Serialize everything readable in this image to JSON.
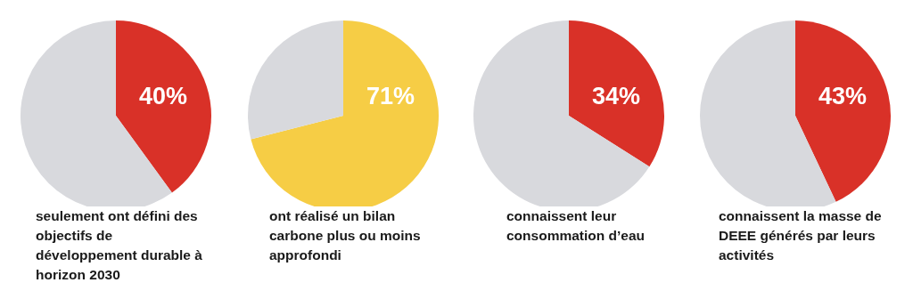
{
  "chart_data": [
    {
      "type": "pie",
      "title": "seulement ont défini des objectifs de développement durable à horizon 2030",
      "categories": [
        null,
        null
      ],
      "values": [
        40,
        60
      ],
      "colors": [
        "#d93128",
        "#d8d9dd"
      ],
      "value_labels": [
        "40%",
        null
      ]
    },
    {
      "type": "pie",
      "title": "ont réalisé un bilan carbone plus ou moins approfondi",
      "categories": [
        null,
        null
      ],
      "values": [
        71,
        29
      ],
      "colors": [
        "#f6cd45",
        "#d8d9dd"
      ],
      "value_labels": [
        "71%",
        null
      ]
    },
    {
      "type": "pie",
      "title": "connaissent leur consommation d’eau",
      "categories": [
        null,
        null
      ],
      "values": [
        34,
        66
      ],
      "colors": [
        "#d93128",
        "#d8d9dd"
      ],
      "value_labels": [
        "34%",
        null
      ]
    },
    {
      "type": "pie",
      "title": "connaissent la masse de DEEE générés par leurs activités",
      "categories": [
        null,
        null
      ],
      "values": [
        43,
        57
      ],
      "colors": [
        "#d93128",
        "#d8d9dd"
      ],
      "value_labels": [
        "43%",
        null
      ]
    }
  ]
}
